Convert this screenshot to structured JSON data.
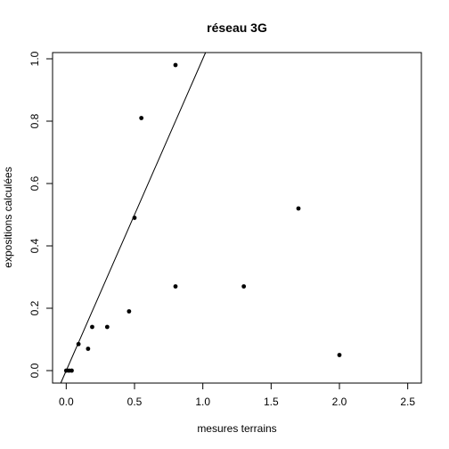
{
  "chart_data": {
    "type": "scatter",
    "title": "réseau 3G",
    "xlabel": "mesures terrains",
    "ylabel": "expositions calculées",
    "xlim": [
      -0.1,
      2.6
    ],
    "ylim": [
      -0.04,
      1.02
    ],
    "x_ticks": [
      0.0,
      0.5,
      1.0,
      1.5,
      2.0,
      2.5
    ],
    "x_tick_labels": [
      "0.0",
      "0.5",
      "1.0",
      "1.5",
      "2.0",
      "2.5"
    ],
    "y_ticks": [
      0.0,
      0.2,
      0.4,
      0.6,
      0.8,
      1.0
    ],
    "y_tick_labels": [
      "0.0",
      "0.2",
      "0.4",
      "0.6",
      "0.8",
      "1.0"
    ],
    "grid": false,
    "points": [
      {
        "x": 0.0,
        "y": 0.0
      },
      {
        "x": 0.02,
        "y": 0.0
      },
      {
        "x": 0.04,
        "y": 0.0
      },
      {
        "x": 0.09,
        "y": 0.085
      },
      {
        "x": 0.16,
        "y": 0.07
      },
      {
        "x": 0.19,
        "y": 0.14
      },
      {
        "x": 0.3,
        "y": 0.14
      },
      {
        "x": 0.46,
        "y": 0.19
      },
      {
        "x": 0.5,
        "y": 0.49
      },
      {
        "x": 0.55,
        "y": 0.81
      },
      {
        "x": 0.8,
        "y": 0.98
      },
      {
        "x": 0.8,
        "y": 0.27
      },
      {
        "x": 1.3,
        "y": 0.27
      },
      {
        "x": 1.7,
        "y": 0.52
      },
      {
        "x": 2.0,
        "y": 0.05
      }
    ],
    "reference_line": {
      "intercept": 0,
      "slope": 1
    }
  }
}
